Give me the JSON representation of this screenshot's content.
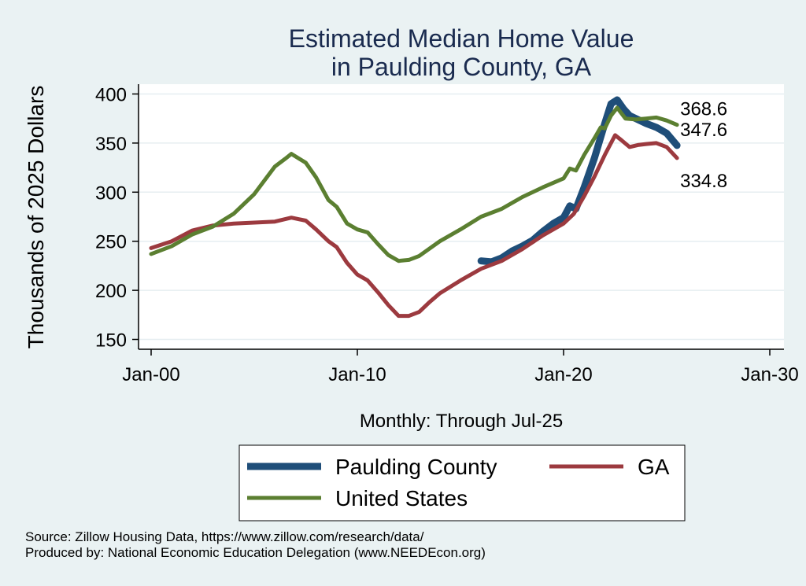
{
  "title_lines": [
    "Estimated Median Home Value",
    "in Paulding County, GA"
  ],
  "footer": {
    "source": "Source: Zillow Housing Data, https://www.zillow.com/research/data/",
    "produced": "Produced by: National Economic Education Delegation (www.NEEDEcon.org)"
  },
  "chart_data": {
    "type": "line",
    "title": "Estimated Median Home Value in Paulding County, GA",
    "xlabel": "Monthly: Through Jul-25",
    "ylabel": "Thousands of 2025 Dollars",
    "xlim": [
      2000,
      2030
    ],
    "ylim": [
      140,
      410
    ],
    "grid": true,
    "x_ticks": [
      {
        "value": 2000,
        "label": "Jan-00"
      },
      {
        "value": 2010,
        "label": "Jan-10"
      },
      {
        "value": 2020,
        "label": "Jan-20"
      },
      {
        "value": 2030,
        "label": "Jan-30"
      }
    ],
    "y_ticks": [
      150,
      200,
      250,
      300,
      350,
      400
    ],
    "legend_position": "bottom",
    "series": [
      {
        "name": "Paulding County",
        "color": "#1f4e79",
        "width": 9,
        "end_label": "347.6",
        "points": [
          [
            2016.0,
            230
          ],
          [
            2016.5,
            229
          ],
          [
            2017.0,
            233
          ],
          [
            2017.5,
            240
          ],
          [
            2018.0,
            245
          ],
          [
            2018.5,
            251
          ],
          [
            2019.0,
            260
          ],
          [
            2019.5,
            268
          ],
          [
            2020.0,
            274
          ],
          [
            2020.3,
            286
          ],
          [
            2020.6,
            283
          ],
          [
            2021.0,
            305
          ],
          [
            2021.5,
            335
          ],
          [
            2022.0,
            370
          ],
          [
            2022.3,
            390
          ],
          [
            2022.6,
            394
          ],
          [
            2022.9,
            385
          ],
          [
            2023.2,
            378
          ],
          [
            2023.6,
            374
          ],
          [
            2024.0,
            370
          ],
          [
            2024.5,
            366
          ],
          [
            2025.0,
            360
          ],
          [
            2025.5,
            347.6
          ]
        ]
      },
      {
        "name": "GA",
        "color": "#9c3a3f",
        "width": 5,
        "end_label": "334.8",
        "points": [
          [
            2000.0,
            243
          ],
          [
            2001.0,
            250
          ],
          [
            2002.0,
            261
          ],
          [
            2003.0,
            266
          ],
          [
            2004.0,
            268
          ],
          [
            2005.0,
            269
          ],
          [
            2006.0,
            270
          ],
          [
            2006.8,
            274
          ],
          [
            2007.5,
            271
          ],
          [
            2008.0,
            262
          ],
          [
            2008.6,
            250
          ],
          [
            2009.0,
            244
          ],
          [
            2009.5,
            228
          ],
          [
            2010.0,
            216
          ],
          [
            2010.5,
            210
          ],
          [
            2011.0,
            198
          ],
          [
            2011.5,
            185
          ],
          [
            2012.0,
            174
          ],
          [
            2012.5,
            174
          ],
          [
            2013.0,
            178
          ],
          [
            2013.5,
            188
          ],
          [
            2014.0,
            197
          ],
          [
            2015.0,
            210
          ],
          [
            2016.0,
            222
          ],
          [
            2017.0,
            230
          ],
          [
            2018.0,
            242
          ],
          [
            2019.0,
            256
          ],
          [
            2019.5,
            262
          ],
          [
            2020.0,
            268
          ],
          [
            2020.5,
            278
          ],
          [
            2021.0,
            296
          ],
          [
            2021.5,
            316
          ],
          [
            2022.0,
            338
          ],
          [
            2022.5,
            358
          ],
          [
            2022.8,
            353
          ],
          [
            2023.2,
            346
          ],
          [
            2023.6,
            348
          ],
          [
            2024.0,
            349
          ],
          [
            2024.5,
            350
          ],
          [
            2025.0,
            346
          ],
          [
            2025.5,
            334.8
          ]
        ]
      },
      {
        "name": "United States",
        "color": "#5b7f31",
        "width": 5,
        "end_label": "368.6",
        "points": [
          [
            2000.0,
            237
          ],
          [
            2001.0,
            245
          ],
          [
            2002.0,
            257
          ],
          [
            2003.0,
            265
          ],
          [
            2004.0,
            278
          ],
          [
            2005.0,
            298
          ],
          [
            2005.5,
            312
          ],
          [
            2006.0,
            326
          ],
          [
            2006.5,
            334
          ],
          [
            2006.8,
            339
          ],
          [
            2007.5,
            330
          ],
          [
            2008.0,
            315
          ],
          [
            2008.6,
            292
          ],
          [
            2009.0,
            285
          ],
          [
            2009.5,
            268
          ],
          [
            2010.0,
            262
          ],
          [
            2010.5,
            259
          ],
          [
            2011.0,
            247
          ],
          [
            2011.5,
            236
          ],
          [
            2012.0,
            230
          ],
          [
            2012.5,
            231
          ],
          [
            2013.0,
            235
          ],
          [
            2014.0,
            250
          ],
          [
            2015.0,
            262
          ],
          [
            2016.0,
            275
          ],
          [
            2017.0,
            283
          ],
          [
            2018.0,
            295
          ],
          [
            2019.0,
            305
          ],
          [
            2020.0,
            314
          ],
          [
            2020.3,
            324
          ],
          [
            2020.6,
            322
          ],
          [
            2021.0,
            338
          ],
          [
            2021.5,
            355
          ],
          [
            2021.8,
            366
          ],
          [
            2022.0,
            365
          ],
          [
            2022.3,
            378
          ],
          [
            2022.6,
            386
          ],
          [
            2023.0,
            375
          ],
          [
            2023.5,
            374
          ],
          [
            2024.0,
            375
          ],
          [
            2024.5,
            376
          ],
          [
            2025.0,
            373
          ],
          [
            2025.5,
            368.6
          ]
        ]
      }
    ]
  }
}
